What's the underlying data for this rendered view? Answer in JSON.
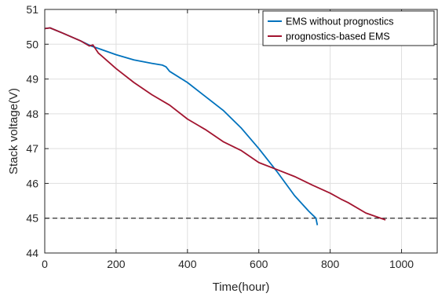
{
  "chart_data": {
    "type": "line",
    "xlabel": "Time(hour)",
    "ylabel": "Stack voltage(V)",
    "xlim": [
      0,
      1100
    ],
    "ylim": [
      44,
      51
    ],
    "xticks": [
      0,
      200,
      400,
      600,
      800,
      1000
    ],
    "yticks": [
      44,
      45,
      46,
      47,
      48,
      49,
      50,
      51
    ],
    "grid": true,
    "legend_position": "top-right",
    "threshold": {
      "y": 45,
      "style": "dashed",
      "color": "#000000"
    },
    "series": [
      {
        "name": "EMS without prognostics",
        "color": "#0072BD",
        "x": [
          0,
          15,
          50,
          100,
          130,
          150,
          200,
          250,
          300,
          330,
          340,
          350,
          400,
          450,
          500,
          550,
          600,
          650,
          700,
          740,
          760,
          764
        ],
        "y": [
          50.45,
          50.47,
          50.32,
          50.1,
          49.95,
          49.88,
          49.7,
          49.55,
          49.45,
          49.4,
          49.35,
          49.22,
          48.9,
          48.5,
          48.1,
          47.6,
          47.0,
          46.35,
          45.65,
          45.2,
          45.0,
          44.8
        ]
      },
      {
        "name": "prognostics-based EMS",
        "color": "#A2142F",
        "x": [
          0,
          15,
          50,
          100,
          125,
          135,
          150,
          200,
          250,
          300,
          350,
          400,
          450,
          500,
          550,
          600,
          650,
          700,
          750,
          800,
          830,
          850,
          900,
          955
        ],
        "y": [
          50.45,
          50.47,
          50.32,
          50.1,
          49.95,
          49.98,
          49.75,
          49.3,
          48.9,
          48.55,
          48.25,
          47.85,
          47.55,
          47.2,
          46.95,
          46.6,
          46.4,
          46.2,
          45.95,
          45.72,
          45.55,
          45.45,
          45.15,
          44.95
        ]
      }
    ]
  }
}
